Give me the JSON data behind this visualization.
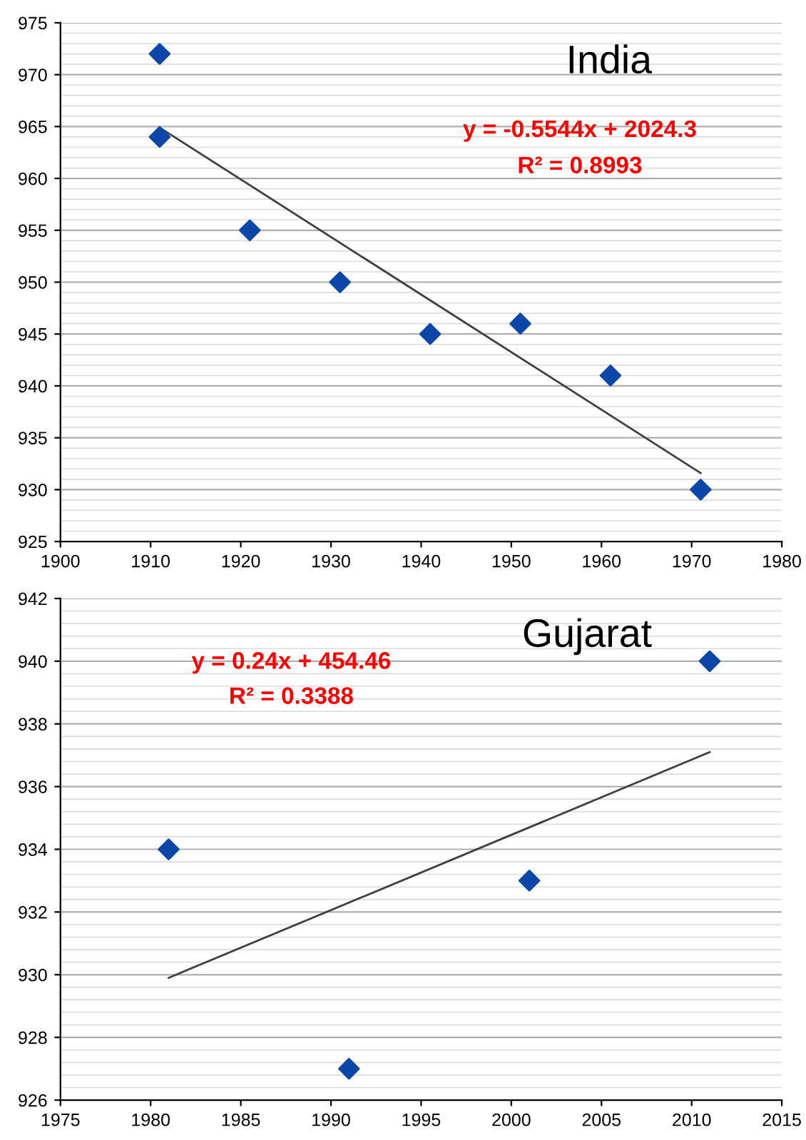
{
  "chart_data": [
    {
      "type": "scatter",
      "title": "India",
      "xlim": [
        1900,
        1980
      ],
      "xticks": [
        1900,
        1910,
        1920,
        1930,
        1940,
        1950,
        1960,
        1970,
        1980
      ],
      "ylim": [
        925,
        975
      ],
      "yticks": [
        925,
        930,
        935,
        940,
        945,
        950,
        955,
        960,
        965,
        970,
        975
      ],
      "grid": "y",
      "legend": false,
      "annotations": [
        "y = -0.5544x + 2024.3",
        "R² = 0.8993"
      ],
      "series": [
        {
          "marker": "diamond",
          "color": "#0a47a8",
          "x": [
            1911,
            1911,
            1921,
            1931,
            1941,
            1951,
            1961,
            1971
          ],
          "values": [
            972,
            964,
            955,
            950,
            945,
            946,
            941,
            930
          ]
        },
        {
          "type": "line",
          "marker": "none",
          "color": "#404040",
          "x": [
            1911,
            1971
          ],
          "values": [
            964.9,
            931.6
          ]
        }
      ]
    },
    {
      "type": "scatter",
      "title": "Gujarat",
      "xlim": [
        1975,
        2015
      ],
      "xticks": [
        1975,
        1980,
        1985,
        1990,
        1995,
        2000,
        2005,
        2010,
        2015
      ],
      "ylim": [
        926,
        942
      ],
      "yticks": [
        926,
        928,
        930,
        932,
        934,
        936,
        938,
        940,
        942
      ],
      "grid": "y",
      "legend": false,
      "annotations": [
        "y = 0.24x + 454.46",
        "R² = 0.3388"
      ],
      "series": [
        {
          "marker": "diamond",
          "color": "#0a47a8",
          "x": [
            1981,
            1991,
            2001,
            2011
          ],
          "values": [
            934,
            927,
            933,
            940
          ]
        },
        {
          "type": "line",
          "marker": "none",
          "color": "#404040",
          "x": [
            1981,
            2011
          ],
          "values": [
            929.9,
            937.1
          ]
        }
      ]
    }
  ]
}
